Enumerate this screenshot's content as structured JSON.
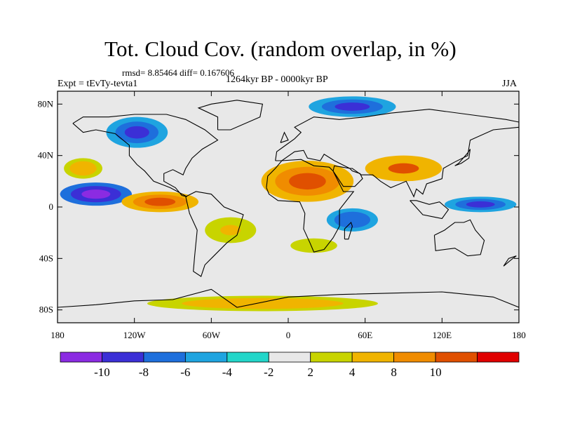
{
  "title": "Tot. Cloud Cov. (random overlap, in %)",
  "stats": "rmsd= 8.85464 diff= 0.167606",
  "period": "1264kyr BP - 0000kyr BP",
  "experiment": "Expt = tEvTy-tevta1",
  "season": "JJA",
  "map": {
    "lon_range": [
      -180,
      180
    ],
    "lat_range": [
      -90,
      90
    ],
    "lat_ticks": [
      {
        "value": 80,
        "label": "80N"
      },
      {
        "value": 40,
        "label": "40N"
      },
      {
        "value": 0,
        "label": "0"
      },
      {
        "value": -40,
        "label": "40S"
      },
      {
        "value": -80,
        "label": "80S"
      }
    ],
    "lon_ticks": [
      {
        "value": -180,
        "label": "180"
      },
      {
        "value": -120,
        "label": "120W"
      },
      {
        "value": -60,
        "label": "60W"
      },
      {
        "value": 0,
        "label": "0"
      },
      {
        "value": 60,
        "label": "60E"
      },
      {
        "value": 120,
        "label": "120E"
      },
      {
        "value": 180,
        "label": "180"
      }
    ],
    "anomaly_regions": [
      {
        "lon": -150,
        "lat": 10,
        "rx": 28,
        "ry": 9,
        "value": -11
      },
      {
        "lon": -100,
        "lat": 4,
        "rx": 30,
        "ry": 8,
        "value": 11
      },
      {
        "lon": -118,
        "lat": 58,
        "rx": 24,
        "ry": 12,
        "value": -10
      },
      {
        "lon": -160,
        "lat": 30,
        "rx": 15,
        "ry": 8,
        "value": 6
      },
      {
        "lon": 15,
        "lat": 20,
        "rx": 36,
        "ry": 16,
        "value": 11
      },
      {
        "lon": 90,
        "lat": 30,
        "rx": 30,
        "ry": 10,
        "value": 10
      },
      {
        "lon": 50,
        "lat": 78,
        "rx": 34,
        "ry": 8,
        "value": -9
      },
      {
        "lon": 50,
        "lat": -10,
        "rx": 20,
        "ry": 9,
        "value": -8
      },
      {
        "lon": 150,
        "lat": 2,
        "rx": 28,
        "ry": 6,
        "value": -10
      },
      {
        "lon": -45,
        "lat": -18,
        "rx": 20,
        "ry": 10,
        "value": 5
      },
      {
        "lon": 20,
        "lat": -30,
        "rx": 26,
        "ry": 8,
        "value": 3
      },
      {
        "lon": -20,
        "lat": -75,
        "rx": 90,
        "ry": 6,
        "value": 7
      }
    ],
    "coastline": "approximate continent outlines"
  },
  "colorbar": {
    "colors": [
      "#8b2be2",
      "#3b2fd6",
      "#1e6fdc",
      "#1fa4e0",
      "#23d6c9",
      "#e8e8e8",
      "#c8d400",
      "#f0b400",
      "#f08c00",
      "#e05000",
      "#e00000"
    ],
    "labels": [
      "-10",
      "-8",
      "-6",
      "-4",
      "-2",
      "2",
      "4",
      "8",
      "10"
    ]
  }
}
